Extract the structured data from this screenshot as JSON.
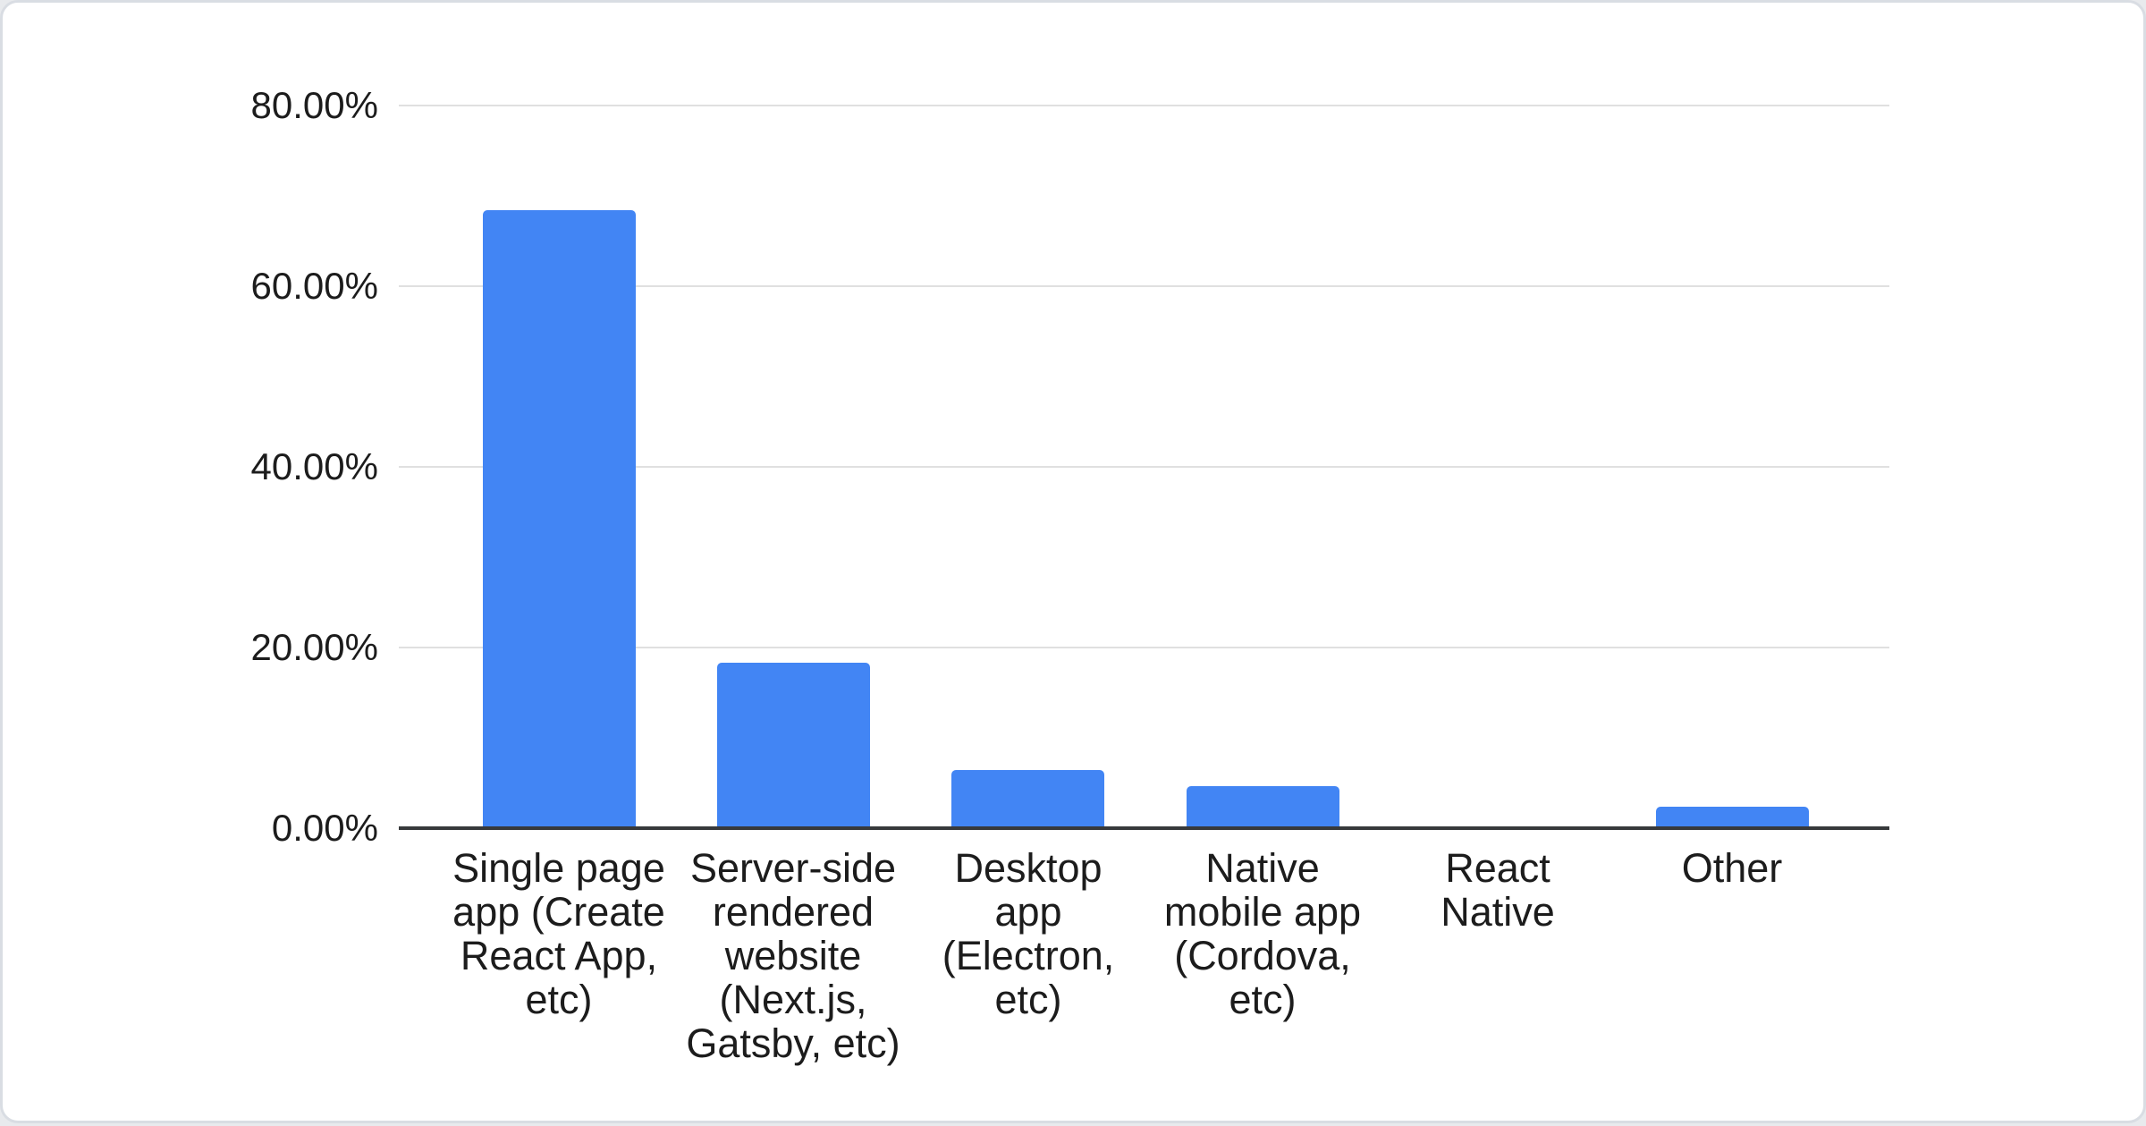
{
  "chart_data": {
    "type": "bar",
    "title": "",
    "xlabel": "",
    "ylabel": "",
    "unit": "percent",
    "ylim": [
      0,
      80
    ],
    "grid": "horizontal",
    "legend_position": "none",
    "bar_color": "#4285f4",
    "y_ticks": [
      {
        "value": 80,
        "label": "80.00%"
      },
      {
        "value": 60,
        "label": "60.00%"
      },
      {
        "value": 40,
        "label": "40.00%"
      },
      {
        "value": 20,
        "label": "20.00%"
      },
      {
        "value": 0,
        "label": "0.00%"
      }
    ],
    "categories": [
      {
        "name": "Single page app (Create React App, etc)",
        "label": "Single page\napp (Create\nReact App,\netc)",
        "value": 68.4
      },
      {
        "name": "Server-side rendered website (Next.js, Gatsby, etc)",
        "label": "Server-side\nrendered\nwebsite\n(Next.js,\nGatsby, etc)",
        "value": 18.3
      },
      {
        "name": "Desktop app (Electron, etc)",
        "label": "Desktop\napp\n(Electron,\netc)",
        "value": 6.4
      },
      {
        "name": "Native mobile app (Cordova, etc)",
        "label": "Native\nmobile app\n(Cordova,\netc)",
        "value": 4.7
      },
      {
        "name": "React Native",
        "label": "React\nNative",
        "value": 0
      },
      {
        "name": "Other",
        "label": "Other",
        "value": 2.4
      }
    ]
  },
  "colors": {
    "bar": "#4285f4",
    "gridline": "#e0e0e0",
    "axis": "#37393b",
    "text": "#1c1c1c",
    "card_border": "#d9dde3",
    "card_background": "#ffffff",
    "page_background": "#e8eaed"
  }
}
